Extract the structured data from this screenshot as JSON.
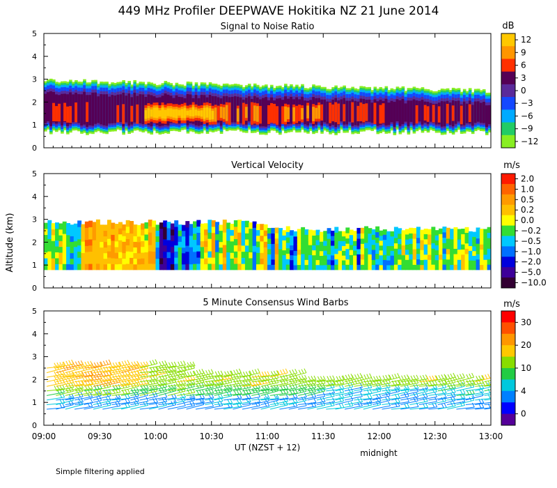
{
  "figure": {
    "title": "449 MHz Profiler DEEPWAVE Hokitika NZ 21 June 2014",
    "ylabel": "Altitude (km)",
    "xlabel": "UT  (NZST + 12)",
    "midnight_label": "midnight",
    "footnote": "Simple filtering applied"
  },
  "chart_data": [
    {
      "type": "heatmap",
      "title": "Signal to Noise Ratio",
      "units": "dB",
      "x_range": [
        "09:00",
        "13:00"
      ],
      "xticks": [
        "09:00",
        "09:30",
        "10:00",
        "10:30",
        "11:00",
        "11:30",
        "12:00",
        "12:30",
        "13:00"
      ],
      "ylim": [
        0,
        5
      ],
      "yticks": [
        "0",
        "1",
        "2",
        "3",
        "4",
        "5"
      ],
      "colorbar_labels": [
        "12",
        "9",
        "6",
        "3",
        "0",
        "−3",
        "−6",
        "−9",
        "−12"
      ],
      "colorbar_colors": [
        "#ffc800",
        "#ff9600",
        "#ff3000",
        "#550055",
        "#5a2a9a",
        "#1448ff",
        "#00aaff",
        "#22cc66",
        "#88ee22"
      ],
      "layer_km": {
        "bottom": [
          0.5,
          0.8
        ],
        "top": [
          2.2,
          3.0
        ]
      },
      "peak_snr_db": 12,
      "peak_period": [
        "10:00",
        "10:30"
      ]
    },
    {
      "type": "heatmap",
      "title": "Vertical Velocity",
      "units": "m/s",
      "x_range": [
        "09:00",
        "13:00"
      ],
      "xticks": [
        "09:00",
        "09:30",
        "10:00",
        "10:30",
        "11:00",
        "11:30",
        "12:00",
        "12:30",
        "13:00"
      ],
      "ylim": [
        0,
        5
      ],
      "yticks": [
        "0",
        "1",
        "2",
        "3",
        "4",
        "5"
      ],
      "colorbar_labels": [
        "2.0",
        "1.0",
        "0.5",
        "0.2",
        "0.0",
        "−0.2",
        "−0.5",
        "−1.0",
        "−2.0",
        "−5.0",
        "−10.0"
      ],
      "colorbar_colors": [
        "#ff1a00",
        "#ff6400",
        "#ff9a00",
        "#ffc000",
        "#ffff00",
        "#33dd33",
        "#00c8ff",
        "#0070ff",
        "#0000dd",
        "#3d0099",
        "#330033"
      ],
      "coverage_km": [
        0.8,
        2.8
      ]
    },
    {
      "type": "wind_barbs",
      "title": "5 Minute Consensus Wind Barbs",
      "units": "m/s",
      "x_range": [
        "09:00",
        "13:00"
      ],
      "xticks": [
        "09:00",
        "09:30",
        "10:00",
        "10:30",
        "11:00",
        "11:30",
        "12:00",
        "12:30",
        "13:00"
      ],
      "ylim": [
        0,
        5
      ],
      "yticks": [
        "0",
        "1",
        "2",
        "3",
        "4",
        "5"
      ],
      "colorbar_labels": [
        "30",
        "20",
        "10",
        "4",
        "0"
      ],
      "colorbar_colors": [
        "#ff0000",
        "#ff5000",
        "#ff9600",
        "#ffc800",
        "#88dd00",
        "#22cc44",
        "#00c8dd",
        "#0080ff",
        "#0000ff",
        "#550099"
      ],
      "speed_range_ms": [
        4,
        25
      ]
    }
  ]
}
